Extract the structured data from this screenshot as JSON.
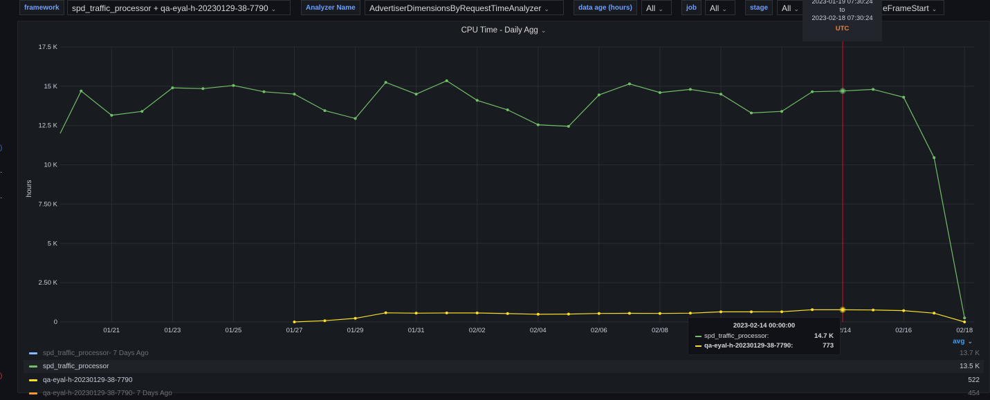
{
  "variables": {
    "framework": {
      "label": "framework",
      "value": "spd_traffic_processor + qa-eyal-h-20230129-38-7790"
    },
    "analyzer": {
      "label": "Analyzer Name",
      "value": "AdvertiserDimensionsByRequestTimeAnalyzer"
    },
    "data_age": {
      "label": "data age (hours)",
      "value": "All"
    },
    "job": {
      "label": "job",
      "value": "All"
    },
    "stage": {
      "label": "stage",
      "value": "All"
    },
    "extra": {
      "value": "eFrameStart"
    }
  },
  "time_range_tooltip": {
    "from": "2023-01-19 07:30:24",
    "to_label": "to",
    "to": "2023-02-18 07:30:24",
    "timezone": "UTC"
  },
  "panel": {
    "title": "CPU Time - Daily Agg"
  },
  "hover_tooltip": {
    "date": "2023-02-14 00:00:00",
    "rows": [
      {
        "name": "spd_traffic_processor:",
        "value": "14.7 K",
        "color": "#73bf69"
      },
      {
        "name": "qa-eyal-h-20230129-38-7790:",
        "value": "773",
        "color": "#fade2a"
      }
    ]
  },
  "legend": {
    "avg_label": "avg",
    "items": [
      {
        "name": "spd_traffic_processor- 7 Days Ago",
        "avg": "13.7 K",
        "color": "#8ab8ff",
        "dim": true
      },
      {
        "name": "spd_traffic_processor",
        "avg": "13.5 K",
        "color": "#73bf69",
        "dim": false
      },
      {
        "name": "qa-eyal-h-20230129-38-7790",
        "avg": "522",
        "color": "#fade2a",
        "dim": false
      },
      {
        "name": "qa-eyal-h-20230129-38-7790- 7 Days Ago",
        "avg": "454",
        "color": "#ff9830",
        "dim": true
      }
    ]
  },
  "chart_data": {
    "type": "line",
    "title": "CPU Time - Daily Agg",
    "ylabel": "hours",
    "xlabel": "",
    "ylim": [
      0,
      17500
    ],
    "yticks": [
      0,
      2500,
      5000,
      7500,
      10000,
      12500,
      15000,
      17500
    ],
    "ytick_labels": [
      "0",
      "2.50 K",
      "5 K",
      "7.50 K",
      "10 K",
      "12.5 K",
      "15 K",
      "17.5 K"
    ],
    "xticks": [
      "01/21",
      "01/23",
      "01/25",
      "01/27",
      "01/29",
      "01/31",
      "02/02",
      "02/04",
      "02/06",
      "02/08",
      "02/10",
      "02/12",
      "02/14",
      "02/16",
      "02/18"
    ],
    "x_range": [
      "2023-01-19 07:30:24",
      "2023-02-18 07:30:24"
    ],
    "grid": true,
    "hover_marker_date": "2023-02-14",
    "series": [
      {
        "name": "spd_traffic_processor",
        "color": "#73bf69",
        "x": [
          "2023-01-19 07:30",
          "2023-01-20",
          "2023-01-21",
          "2023-01-22",
          "2023-01-23",
          "2023-01-24",
          "2023-01-25",
          "2023-01-26",
          "2023-01-27",
          "2023-01-28",
          "2023-01-29",
          "2023-01-30",
          "2023-01-31",
          "2023-02-01",
          "2023-02-02",
          "2023-02-03",
          "2023-02-04",
          "2023-02-05",
          "2023-02-06",
          "2023-02-07",
          "2023-02-08",
          "2023-02-09",
          "2023-02-10",
          "2023-02-11",
          "2023-02-12",
          "2023-02-13",
          "2023-02-14",
          "2023-02-15",
          "2023-02-16",
          "2023-02-17",
          "2023-02-18"
        ],
        "values": [
          12000,
          14700,
          13150,
          13400,
          14900,
          14850,
          15050,
          14650,
          14500,
          13450,
          12950,
          15250,
          14500,
          15350,
          14100,
          13500,
          12550,
          12450,
          14450,
          15150,
          14600,
          14800,
          14500,
          13300,
          13400,
          14650,
          14700,
          14800,
          14300,
          10450,
          250
        ]
      },
      {
        "name": "qa-eyal-h-20230129-38-7790",
        "color": "#fade2a",
        "x": [
          "2023-01-27",
          "2023-01-28",
          "2023-01-29",
          "2023-01-30",
          "2023-01-31",
          "2023-02-01",
          "2023-02-02",
          "2023-02-03",
          "2023-02-04",
          "2023-02-05",
          "2023-02-06",
          "2023-02-07",
          "2023-02-08",
          "2023-02-09",
          "2023-02-10",
          "2023-02-11",
          "2023-02-12",
          "2023-02-13",
          "2023-02-14",
          "2023-02-15",
          "2023-02-16",
          "2023-02-17",
          "2023-02-18"
        ],
        "values": [
          0,
          80,
          230,
          580,
          560,
          570,
          570,
          530,
          490,
          500,
          540,
          550,
          540,
          560,
          640,
          640,
          650,
          780,
          773,
          760,
          720,
          560,
          0
        ]
      }
    ]
  }
}
